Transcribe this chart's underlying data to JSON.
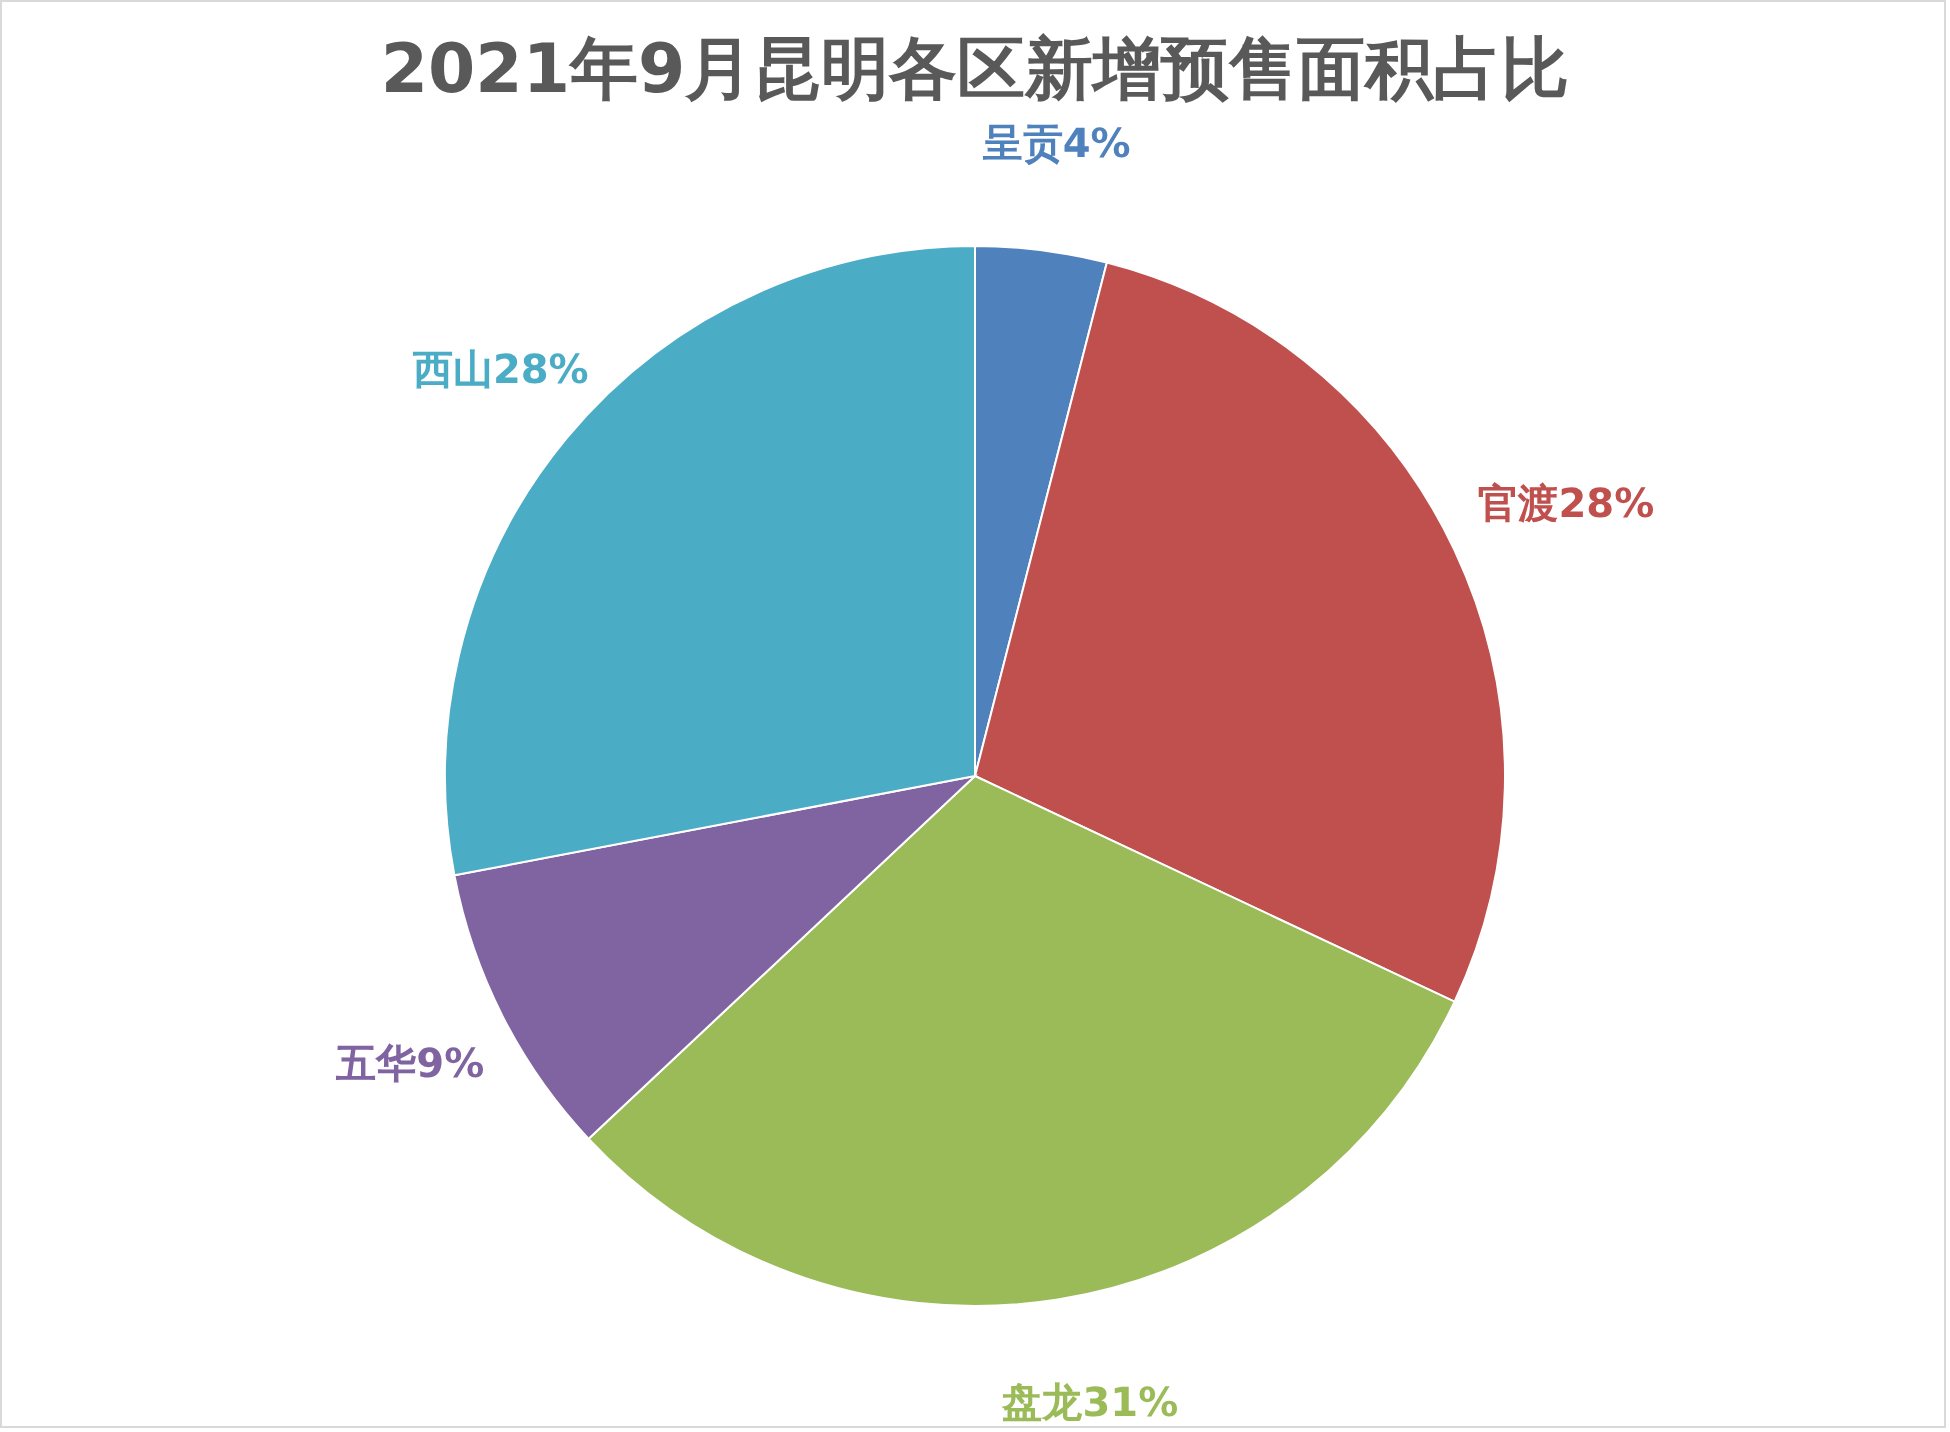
{
  "chart_data": {
    "type": "pie",
    "title": "2021年9月昆明各区新增预售面积占比",
    "categories": [
      "呈贡",
      "官渡",
      "盘龙",
      "五华",
      "西山"
    ],
    "values": [
      4,
      28,
      31,
      9,
      28
    ],
    "value_labels": [
      "4%",
      "28%",
      "31%",
      "9%",
      "28%"
    ],
    "colors": [
      "#4f81bd",
      "#c0504d",
      "#9bbb59",
      "#8064a2",
      "#4bacc6"
    ],
    "legend": false
  }
}
